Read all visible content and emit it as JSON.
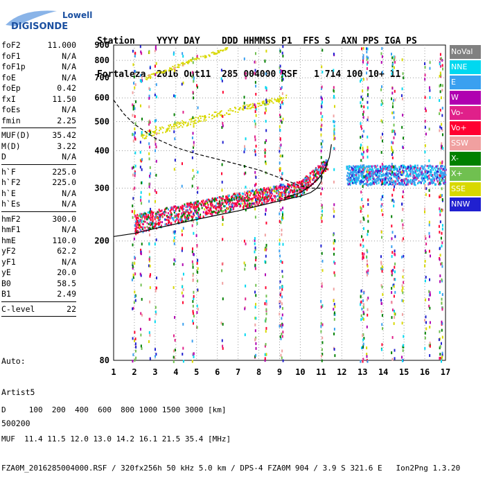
{
  "logo": {
    "line1": "Lowell",
    "line2": "DIGISONDE"
  },
  "header": {
    "labels": "Station    YYYY DAY    DDD HHMMSS P1  FFS S  AXN PPS IGA PS",
    "values": "Fortaleza  2016 Out11  285 004000 RSF   1 714 100 10+ 11"
  },
  "params": [
    [
      [
        "foF2",
        "11.000"
      ],
      [
        "foF1",
        "N/A"
      ],
      [
        "foF1p",
        "N/A"
      ],
      [
        "foE",
        "N/A"
      ],
      [
        "foEp",
        "0.42"
      ],
      [
        "fxI",
        "11.50"
      ],
      [
        "foEs",
        "N/A"
      ],
      [
        "fmin",
        "2.25"
      ]
    ],
    [
      [
        "MUF(D)",
        "35.42"
      ],
      [
        "M(D)",
        "3.22"
      ],
      [
        "D",
        "N/A"
      ]
    ],
    [
      [
        "h`F",
        "225.0"
      ],
      [
        "h`F2",
        "225.0"
      ],
      [
        "h`E",
        "N/A"
      ],
      [
        "h`Es",
        "N/A"
      ]
    ],
    [
      [
        "hmF2",
        "300.0"
      ],
      [
        "hmF1",
        "N/A"
      ],
      [
        "hmE",
        "110.0"
      ],
      [
        "yF2",
        "62.2"
      ],
      [
        "yF1",
        "N/A"
      ],
      [
        "yE",
        "20.0"
      ],
      [
        "B0",
        "58.5"
      ],
      [
        "B1",
        "2.49"
      ]
    ],
    [
      [
        "C-level",
        "22"
      ]
    ]
  ],
  "auto": {
    "line1": "Auto:",
    "line2": "Artist5",
    "line3": "500200"
  },
  "legend": [
    {
      "label": "NoVal",
      "color": "#808080"
    },
    {
      "label": "NNE",
      "color": "#00d8f0"
    },
    {
      "label": "E",
      "color": "#3aa0f0"
    },
    {
      "label": "W",
      "color": "#b000b0"
    },
    {
      "label": "Vo-",
      "color": "#e0208a"
    },
    {
      "label": "Vo+",
      "color": "#ff0030"
    },
    {
      "label": "SSW",
      "color": "#f0a0a0"
    },
    {
      "label": "X-",
      "color": "#008000"
    },
    {
      "label": "X+",
      "color": "#70c050"
    },
    {
      "label": "SSE",
      "color": "#d8d800"
    },
    {
      "label": "NNW",
      "color": "#2020d0"
    }
  ],
  "chart_data": {
    "type": "scatter",
    "title": "",
    "xlabel": "",
    "ylabel": "",
    "xlim": [
      1,
      17
    ],
    "ylim": [
      80,
      900
    ],
    "yscale": "log",
    "x_ticks": [
      1,
      2,
      3,
      4,
      5,
      6,
      7,
      8,
      9,
      10,
      11,
      12,
      13,
      14,
      15,
      16,
      17
    ],
    "y_ticks": [
      80,
      200,
      300,
      400,
      500,
      600,
      700,
      800,
      900
    ],
    "grid": true,
    "series": [
      {
        "name": "",
        "style": "dashed",
        "x": [
          1.0,
          1.5,
          2.0,
          3.0,
          4.0,
          5.0,
          6.0,
          7.0,
          8.0,
          9.0,
          9.5,
          10.0,
          10.5,
          11.0
        ],
        "y": [
          590,
          530,
          490,
          440,
          410,
          390,
          375,
          360,
          345,
          325,
          315,
          305,
          300,
          300
        ]
      },
      {
        "name": "",
        "style": "solid",
        "x": [
          1.0,
          2.0,
          3.0,
          4.0,
          5.0,
          6.0,
          7.0,
          8.0,
          9.0,
          10.0,
          10.5,
          10.8,
          11.0,
          11.05
        ],
        "y": [
          207,
          212,
          220,
          228,
          236,
          244,
          252,
          262,
          272,
          282,
          290,
          300,
          315,
          330
        ]
      },
      {
        "name": "",
        "style": "solid",
        "x": [
          9.2,
          10.0,
          10.5,
          11.0,
          11.2,
          11.4,
          11.5
        ],
        "y": [
          278,
          290,
          305,
          330,
          350,
          380,
          420
        ]
      }
    ]
  },
  "footer": {
    "line1": "D     100  200  400  600  800 1000 1500 3000 [km]",
    "line2": "MUF  11.4 11.5 12.0 13.0 14.2 16.1 21.5 35.4 [MHz]",
    "line3": "FZA0M_2016285004000.RSF / 320fx256h 50 kHz 5.0 km / DPS-4 FZA0M 904 / 3.9 S 321.6 E   Ion2Png 1.3.20"
  }
}
